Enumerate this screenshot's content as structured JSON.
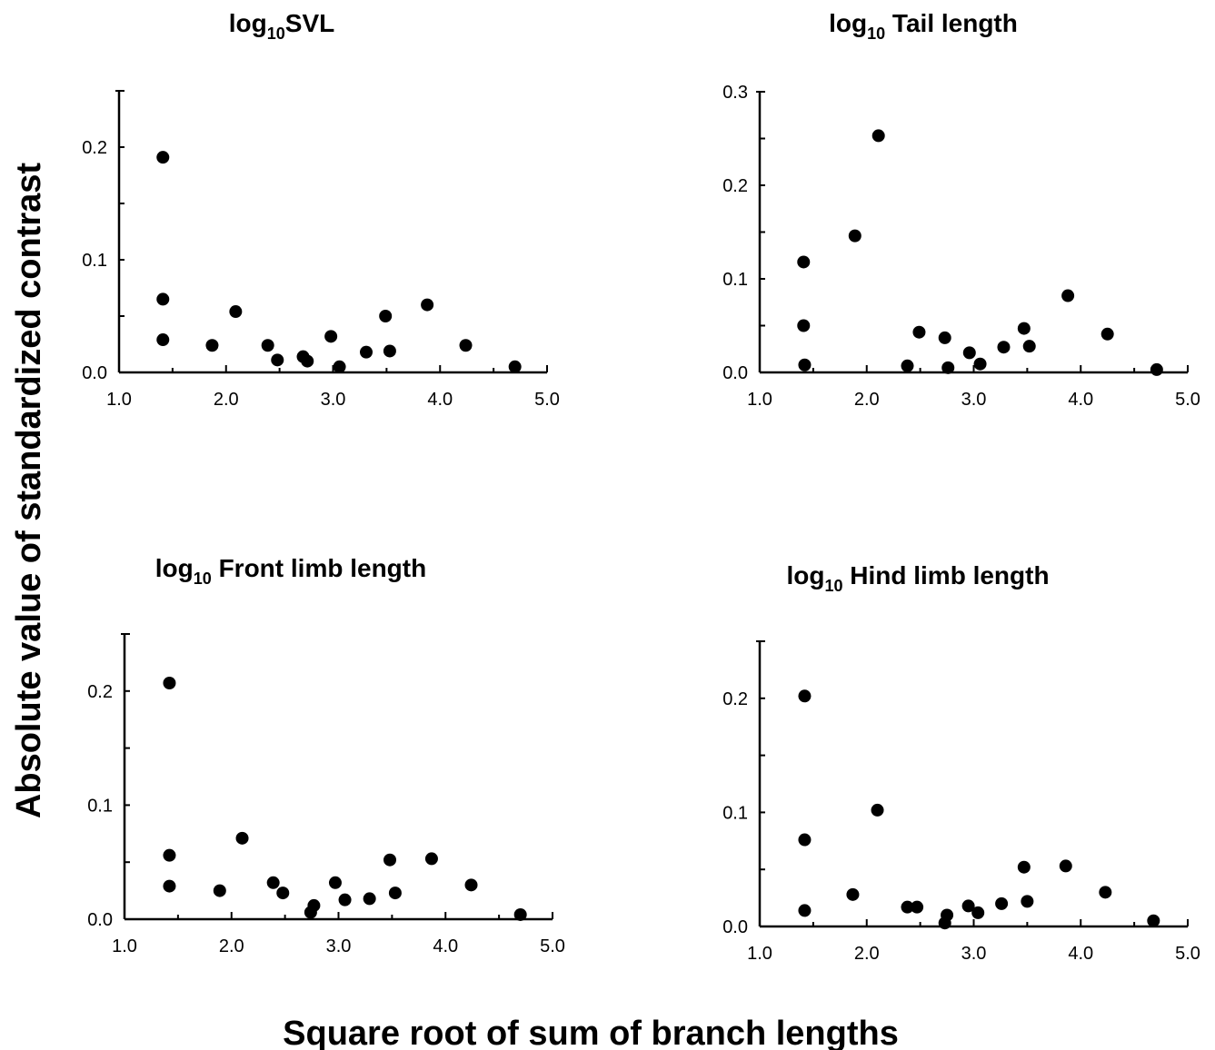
{
  "figure": {
    "ylabel": "Absolute value of standardized contrast",
    "xlabel": "Square root of sum of branch lengths",
    "colors": {
      "ink": "#000000",
      "background": "#ffffff"
    }
  },
  "chart_data": [
    {
      "type": "scatter",
      "title_base": "log",
      "title_sub": "10",
      "title_rest": "SVL",
      "xlim": [
        1.0,
        5.0
      ],
      "ylim": [
        0.0,
        0.25
      ],
      "xticks": [
        "1.0",
        "2.0",
        "3.0",
        "4.0",
        "5.0"
      ],
      "yticks": [
        "0.0",
        "0.1",
        "0.2"
      ],
      "ytick_values": [
        0.0,
        0.1,
        0.2
      ],
      "grid": false,
      "points": [
        [
          1.41,
          0.191
        ],
        [
          1.41,
          0.065
        ],
        [
          1.41,
          0.029
        ],
        [
          1.87,
          0.024
        ],
        [
          2.09,
          0.054
        ],
        [
          2.39,
          0.024
        ],
        [
          2.48,
          0.011
        ],
        [
          2.72,
          0.014
        ],
        [
          2.76,
          0.01
        ],
        [
          2.98,
          0.032
        ],
        [
          3.06,
          0.005
        ],
        [
          3.31,
          0.018
        ],
        [
          3.49,
          0.05
        ],
        [
          3.53,
          0.019
        ],
        [
          3.88,
          0.06
        ],
        [
          4.24,
          0.024
        ],
        [
          4.7,
          0.005
        ]
      ]
    },
    {
      "type": "scatter",
      "title_base": "log",
      "title_sub": "10",
      "title_rest": " Tail length",
      "xlim": [
        1.0,
        5.0
      ],
      "ylim": [
        0.0,
        0.3
      ],
      "xticks": [
        "1.0",
        "2.0",
        "3.0",
        "4.0",
        "5.0"
      ],
      "yticks": [
        "0.0",
        "0.1",
        "0.2",
        "0.3"
      ],
      "ytick_values": [
        0.0,
        0.1,
        0.2,
        0.3
      ],
      "grid": false,
      "points": [
        [
          1.41,
          0.118
        ],
        [
          1.41,
          0.05
        ],
        [
          1.42,
          0.008
        ],
        [
          1.89,
          0.146
        ],
        [
          2.11,
          0.253
        ],
        [
          2.38,
          0.007
        ],
        [
          2.49,
          0.043
        ],
        [
          2.73,
          0.037
        ],
        [
          2.76,
          0.005
        ],
        [
          2.96,
          0.021
        ],
        [
          3.06,
          0.009
        ],
        [
          3.28,
          0.027
        ],
        [
          3.47,
          0.047
        ],
        [
          3.52,
          0.028
        ],
        [
          3.88,
          0.082
        ],
        [
          4.25,
          0.041
        ],
        [
          4.71,
          0.003
        ]
      ]
    },
    {
      "type": "scatter",
      "title_base": "log",
      "title_sub": "10",
      "title_rest": " Front limb length",
      "xlim": [
        1.0,
        5.0
      ],
      "ylim": [
        0.0,
        0.25
      ],
      "xticks": [
        "1.0",
        "2.0",
        "3.0",
        "4.0",
        "5.0"
      ],
      "yticks": [
        "0.0",
        "0.1",
        "0.2"
      ],
      "ytick_values": [
        0.0,
        0.1,
        0.2
      ],
      "grid": false,
      "points": [
        [
          1.42,
          0.207
        ],
        [
          1.42,
          0.056
        ],
        [
          1.42,
          0.029
        ],
        [
          1.89,
          0.025
        ],
        [
          2.1,
          0.071
        ],
        [
          2.39,
          0.032
        ],
        [
          2.48,
          0.023
        ],
        [
          2.74,
          0.006
        ],
        [
          2.77,
          0.012
        ],
        [
          2.97,
          0.032
        ],
        [
          3.06,
          0.017
        ],
        [
          3.29,
          0.018
        ],
        [
          3.48,
          0.052
        ],
        [
          3.53,
          0.023
        ],
        [
          3.87,
          0.053
        ],
        [
          4.24,
          0.03
        ],
        [
          4.7,
          0.004
        ]
      ]
    },
    {
      "type": "scatter",
      "title_base": "log",
      "title_sub": "10",
      "title_rest": " Hind limb length",
      "xlim": [
        1.0,
        5.0
      ],
      "ylim": [
        0.0,
        0.25
      ],
      "xticks": [
        "1.0",
        "2.0",
        "3.0",
        "4.0",
        "5.0"
      ],
      "yticks": [
        "0.0",
        "0.1",
        "0.2"
      ],
      "ytick_values": [
        0.0,
        0.1,
        0.2
      ],
      "grid": false,
      "points": [
        [
          1.42,
          0.202
        ],
        [
          1.42,
          0.076
        ],
        [
          1.42,
          0.014
        ],
        [
          1.87,
          0.028
        ],
        [
          2.1,
          0.102
        ],
        [
          2.38,
          0.017
        ],
        [
          2.47,
          0.017
        ],
        [
          2.73,
          0.003
        ],
        [
          2.75,
          0.01
        ],
        [
          2.95,
          0.018
        ],
        [
          3.04,
          0.012
        ],
        [
          3.26,
          0.02
        ],
        [
          3.47,
          0.052
        ],
        [
          3.5,
          0.022
        ],
        [
          3.86,
          0.053
        ],
        [
          4.23,
          0.03
        ],
        [
          4.68,
          0.005
        ]
      ]
    }
  ]
}
